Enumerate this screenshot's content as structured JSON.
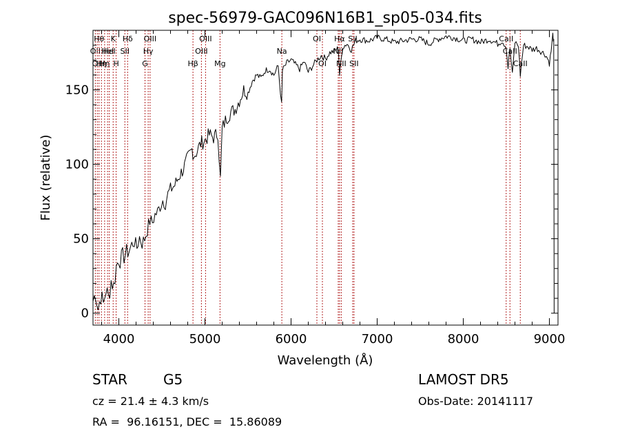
{
  "chart_data": {
    "type": "line",
    "title": "spec-56979-GAC096N16B1_sp05-034.fits",
    "xlabel": "Wavelength (Å)",
    "ylabel": "Flux (relative)",
    "xlim": [
      3700,
      9100
    ],
    "ylim": [
      -8,
      190
    ],
    "xticks": [
      4000,
      5000,
      6000,
      7000,
      8000,
      9000
    ],
    "yticks": [
      0,
      50,
      100,
      150
    ],
    "line_color": "#000000",
    "marker_color": "#b22222",
    "series": [
      {
        "x": [
          3700,
          3730,
          3760,
          3790,
          3820,
          3850,
          3880,
          3910,
          3940,
          3970,
          4000,
          4030,
          4060,
          4090,
          4120,
          4150,
          4180,
          4210,
          4240,
          4270,
          4300,
          4330,
          4360,
          4390,
          4420,
          4450,
          4480,
          4510,
          4540,
          4570,
          4600,
          4650,
          4700,
          4750,
          4800,
          4850,
          4870,
          4900,
          4950,
          5000,
          5050,
          5100,
          5150,
          5180,
          5200,
          5250,
          5300,
          5350,
          5400,
          5450,
          5500,
          5550,
          5600,
          5650,
          5700,
          5750,
          5800,
          5850,
          5890,
          5900,
          5950,
          6000,
          6050,
          6100,
          6150,
          6200,
          6250,
          6300,
          6350,
          6400,
          6450,
          6500,
          6550,
          6563,
          6600,
          6650,
          6700,
          6750,
          6800,
          6900,
          7000,
          7100,
          7200,
          7300,
          7400,
          7500,
          7600,
          7700,
          7800,
          7900,
          8000,
          8100,
          8200,
          8300,
          8400,
          8450,
          8498,
          8520,
          8542,
          8570,
          8600,
          8640,
          8662,
          8700,
          8750,
          8800,
          8850,
          8900,
          8950,
          8980,
          9000,
          9020,
          9040,
          9050,
          9055
        ],
        "y": [
          8,
          14,
          3,
          12,
          6,
          16,
          10,
          22,
          18,
          31,
          37,
          36,
          39,
          40,
          42,
          46,
          48,
          44,
          51,
          47,
          50,
          56,
          62,
          61,
          66,
          68,
          72,
          76,
          74,
          80,
          83,
          86,
          92,
          97,
          104,
          110,
          106,
          108,
          114,
          116,
          120,
          118,
          121,
          90,
          124,
          131,
          135,
          137,
          143,
          150,
          148,
          156,
          160,
          158,
          163,
          164,
          160,
          166,
          140,
          163,
          168,
          170,
          167,
          164,
          169,
          162,
          166,
          170,
          173,
          171,
          175,
          176,
          178,
          160,
          179,
          181,
          177,
          183,
          184,
          183,
          185,
          184,
          182,
          183,
          184,
          184,
          181,
          184,
          186,
          185,
          183,
          184,
          182,
          184,
          181,
          183,
          179,
          165,
          178,
          160,
          182,
          180,
          160,
          180,
          179,
          177,
          178,
          176,
          174,
          171,
          168,
          176,
          187,
          182,
          0
        ]
      }
    ],
    "markers": [
      {
        "wave": 3727,
        "label": "OII",
        "row": 2
      },
      {
        "wave": 3750,
        "label": "OII",
        "row": 3
      },
      {
        "wave": 3770,
        "label": "Hθ",
        "row": 1
      },
      {
        "wave": 3798,
        "label": "Hη",
        "row": 3
      },
      {
        "wave": 3835,
        "label": "Hη",
        "row": 3
      },
      {
        "wave": 3869,
        "label": "HeI",
        "row": 2
      },
      {
        "wave": 3889,
        "label": "HeI",
        "row": 2
      },
      {
        "wave": 3934,
        "label": "K",
        "row": 1
      },
      {
        "wave": 3969,
        "label": "H",
        "row": 3
      },
      {
        "wave": 4070,
        "label": "SII",
        "row": 2
      },
      {
        "wave": 4102,
        "label": "Hδ",
        "row": 1
      },
      {
        "wave": 4304,
        "label": "G",
        "row": 3
      },
      {
        "wave": 4341,
        "label": "Hγ",
        "row": 2
      },
      {
        "wave": 4363,
        "label": "OIII",
        "row": 1
      },
      {
        "wave": 4861,
        "label": "Hβ",
        "row": 3
      },
      {
        "wave": 4959,
        "label": "OIII",
        "row": 2
      },
      {
        "wave": 5007,
        "label": "OIII",
        "row": 1
      },
      {
        "wave": 5175,
        "label": "Mg",
        "row": 3
      },
      {
        "wave": 5893,
        "label": "Na",
        "row": 2
      },
      {
        "wave": 6300,
        "label": "OI",
        "row": 1
      },
      {
        "wave": 6364,
        "label": "OI",
        "row": 3
      },
      {
        "wave": 6548,
        "label": "NII",
        "row": 2
      },
      {
        "wave": 6563,
        "label": "Hα",
        "row": 1
      },
      {
        "wave": 6583,
        "label": "NII",
        "row": 3
      },
      {
        "wave": 6716,
        "label": "SII",
        "row": 1
      },
      {
        "wave": 6731,
        "label": "SII",
        "row": 3
      },
      {
        "wave": 8498,
        "label": "CaII",
        "row": 1
      },
      {
        "wave": 8542,
        "label": "CaII",
        "row": 2
      },
      {
        "wave": 8662,
        "label": "CaII",
        "row": 3
      }
    ]
  },
  "info": {
    "class": "STAR",
    "subclass": "G5",
    "survey": "LAMOST DR5",
    "cz": "cz = 21.4 ± 4.3 km/s",
    "obs_date": "Obs-Date: 20141117",
    "coords": "RA =  96.16151, DEC =  15.86089"
  }
}
